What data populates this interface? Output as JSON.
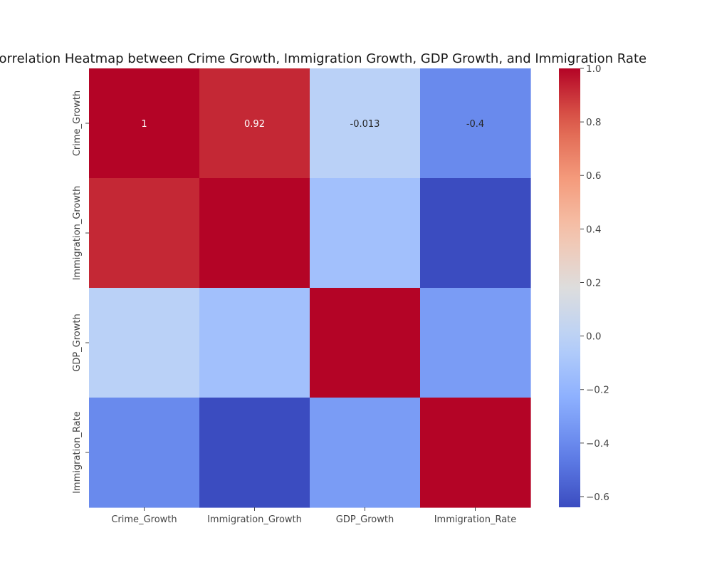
{
  "chart_data": {
    "type": "heatmap",
    "title": "Correlation Heatmap between Crime Growth, Immigration Growth, GDP Growth, and Immigration Rate",
    "row_labels": [
      "Crime_Growth",
      "Immigration_Growth",
      "GDP_Growth",
      "Immigration_Rate"
    ],
    "col_labels": [
      "Crime_Growth",
      "Immigration_Growth",
      "GDP_Growth",
      "Immigration_Rate"
    ],
    "values": [
      [
        1.0,
        0.92,
        -0.013,
        -0.4
      ],
      [
        0.92,
        1.0,
        -0.13,
        -0.64
      ],
      [
        -0.013,
        -0.13,
        1.0,
        -0.32
      ],
      [
        -0.4,
        -0.64,
        -0.32,
        1.0
      ]
    ],
    "annotations": [
      [
        "1",
        "0.92",
        "-0.013",
        "-0.4"
      ],
      [
        "",
        "",
        "",
        ""
      ],
      [
        "",
        "",
        "",
        ""
      ],
      [
        "",
        "",
        "",
        ""
      ]
    ],
    "colormap": "coolwarm",
    "vmin": -0.64,
    "vmax": 1.0,
    "colorbar_ticks": [
      1.0,
      0.8,
      0.6,
      0.4,
      0.2,
      0.0,
      -0.2,
      -0.4,
      -0.6
    ],
    "colorbar_tick_labels": [
      "1.0",
      "0.8",
      "0.6",
      "0.4",
      "0.2",
      "0.0",
      "−0.2",
      "−0.4",
      "−0.6"
    ],
    "colorbar_position": "right"
  }
}
